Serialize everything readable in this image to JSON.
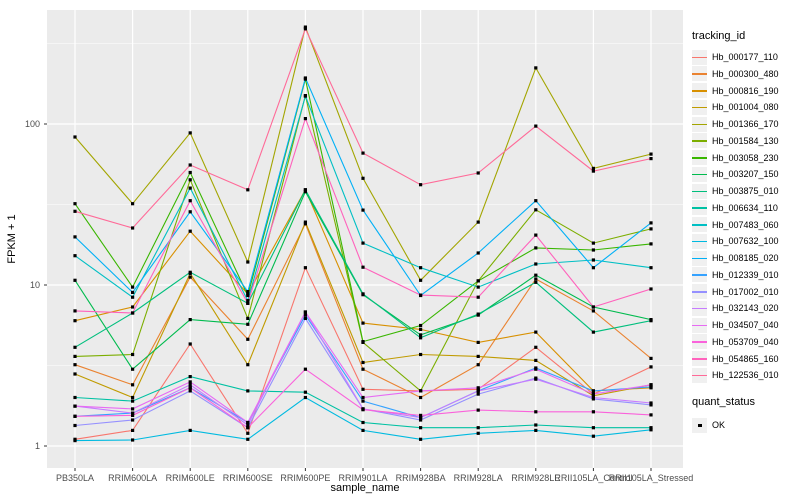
{
  "figure": {
    "y_axis_title": "FPKM + 1",
    "x_axis_title": "sample_name",
    "series_legend_title": "tracking_id",
    "quant_legend_title": "quant_status",
    "quant_legend_item": "OK",
    "panel_color": "#EBEBEB",
    "grid_color": "#FFFFFF",
    "tick_text_color": "#4D4D4D",
    "marker_color": "#000000"
  },
  "chart_data": {
    "type": "line",
    "title": "",
    "xlabel": "sample_name",
    "ylabel": "FPKM + 1",
    "y_scale": "log10",
    "ylim": [
      1,
      450
    ],
    "yticks": [
      1,
      10,
      100
    ],
    "grid": true,
    "legend_position": "right",
    "marker": "black-square",
    "marker_legend": {
      "title": "quant_status",
      "items": [
        {
          "label": "OK",
          "shape": "square",
          "color": "#000000"
        }
      ]
    },
    "categories": [
      "PB350LA",
      "RRIM600LA",
      "RRIM600LE",
      "RRIM600SE",
      "RRIM600PE",
      "RRIM901LA",
      "RRIM928BA",
      "RRIM928LA",
      "RRIM928LE",
      "RRII105LA_Control",
      "RRII105LA_Stressed"
    ],
    "series": [
      {
        "name": "Hb_000177_110",
        "color": "#F8766D",
        "values": [
          1.1,
          1.25,
          4.3,
          1.2,
          12.8,
          2.25,
          2.2,
          2.25,
          4.1,
          2.1,
          3.1
        ]
      },
      {
        "name": "Hb_000300_480",
        "color": "#EA8331",
        "values": [
          3.2,
          2.4,
          11.2,
          4.6,
          24,
          3.0,
          2.0,
          3.2,
          10.9,
          6.9,
          3.5
        ]
      },
      {
        "name": "Hb_000816_190",
        "color": "#D89000",
        "values": [
          6.0,
          7.3,
          21.6,
          8.8,
          39,
          5.8,
          5.3,
          4.4,
          5.1,
          2.2,
          2.3
        ]
      },
      {
        "name": "Hb_001004_080",
        "color": "#C09B00",
        "values": [
          2.8,
          2.0,
          11.8,
          3.2,
          24.6,
          3.3,
          3.7,
          3.6,
          3.4,
          2.05,
          2.4
        ]
      },
      {
        "name": "Hb_001366_170",
        "color": "#A3A500",
        "values": [
          83,
          32,
          88,
          13.9,
          400,
          46,
          10.7,
          24.6,
          223,
          53,
          65
        ]
      },
      {
        "name": "Hb_001584_130",
        "color": "#7CAE00",
        "values": [
          3.6,
          3.7,
          45,
          6.2,
          150,
          4.4,
          2.2,
          10.6,
          29.3,
          18.2,
          22.3
        ]
      },
      {
        "name": "Hb_003058_230",
        "color": "#39B600",
        "values": [
          32,
          9.7,
          50,
          8.6,
          190,
          4.45,
          5.6,
          10.6,
          17,
          16.5,
          18
        ]
      },
      {
        "name": "Hb_003207_150",
        "color": "#00BB4E",
        "values": [
          10.7,
          3.0,
          6.1,
          5.7,
          38,
          8.7,
          4.9,
          6.5,
          11.5,
          7.3,
          6.1
        ]
      },
      {
        "name": "Hb_003875_010",
        "color": "#00BF7D",
        "values": [
          4.1,
          6.7,
          12.0,
          7.7,
          39,
          8.8,
          4.7,
          6.6,
          10.4,
          5.1,
          6.0
        ]
      },
      {
        "name": "Hb_006634_110",
        "color": "#00C1A3",
        "values": [
          2.0,
          1.9,
          2.7,
          2.2,
          2.16,
          1.4,
          1.3,
          1.3,
          1.35,
          1.3,
          1.3
        ]
      },
      {
        "name": "Hb_007483_060",
        "color": "#00BFC4",
        "values": [
          15.2,
          8.4,
          40,
          8.0,
          149,
          18.2,
          12.8,
          9.7,
          13.5,
          14.3,
          12.8
        ]
      },
      {
        "name": "Hb_007632_100",
        "color": "#00BAE0",
        "values": [
          1.08,
          1.09,
          1.25,
          1.1,
          2.0,
          1.25,
          1.1,
          1.2,
          1.25,
          1.15,
          1.26
        ]
      },
      {
        "name": "Hb_008185_020",
        "color": "#00B0F6",
        "values": [
          19.9,
          9.0,
          28.5,
          9.1,
          193,
          29.2,
          8.6,
          15.8,
          33.4,
          12.8,
          24.3
        ]
      },
      {
        "name": "Hb_012339_010",
        "color": "#35A2FF",
        "values": [
          1.53,
          1.6,
          2.3,
          1.4,
          6.5,
          1.9,
          1.5,
          2.2,
          3.05,
          2.2,
          2.33
        ]
      },
      {
        "name": "Hb_017002_010",
        "color": "#9590FF",
        "values": [
          1.34,
          1.45,
          2.2,
          1.3,
          6.2,
          1.7,
          1.45,
          2.1,
          2.64,
          1.96,
          1.8
        ]
      },
      {
        "name": "Hb_032143_020",
        "color": "#C77CFF",
        "values": [
          1.77,
          1.6,
          2.4,
          1.35,
          6.8,
          1.7,
          1.5,
          2.2,
          2.6,
          2.0,
          1.85
        ]
      },
      {
        "name": "Hb_034507_040",
        "color": "#E76BF3",
        "values": [
          1.77,
          1.7,
          2.5,
          1.4,
          6.8,
          2.0,
          2.2,
          2.3,
          3.0,
          2.1,
          2.4
        ]
      },
      {
        "name": "Hb_053709_040",
        "color": "#FA62DB",
        "values": [
          1.53,
          1.55,
          2.3,
          1.3,
          3.0,
          1.68,
          1.55,
          1.67,
          1.63,
          1.63,
          1.56
        ]
      },
      {
        "name": "Hb_054865_160",
        "color": "#FF62BC",
        "values": [
          6.9,
          6.7,
          33.4,
          7.7,
          108,
          12.9,
          8.65,
          8.4,
          20.4,
          7.3,
          9.44
        ]
      },
      {
        "name": "Hb_122536_010",
        "color": "#FF6A98",
        "values": [
          28.7,
          22.6,
          55.6,
          39,
          390,
          66,
          42,
          49.6,
          97,
          51,
          61
        ]
      }
    ]
  }
}
